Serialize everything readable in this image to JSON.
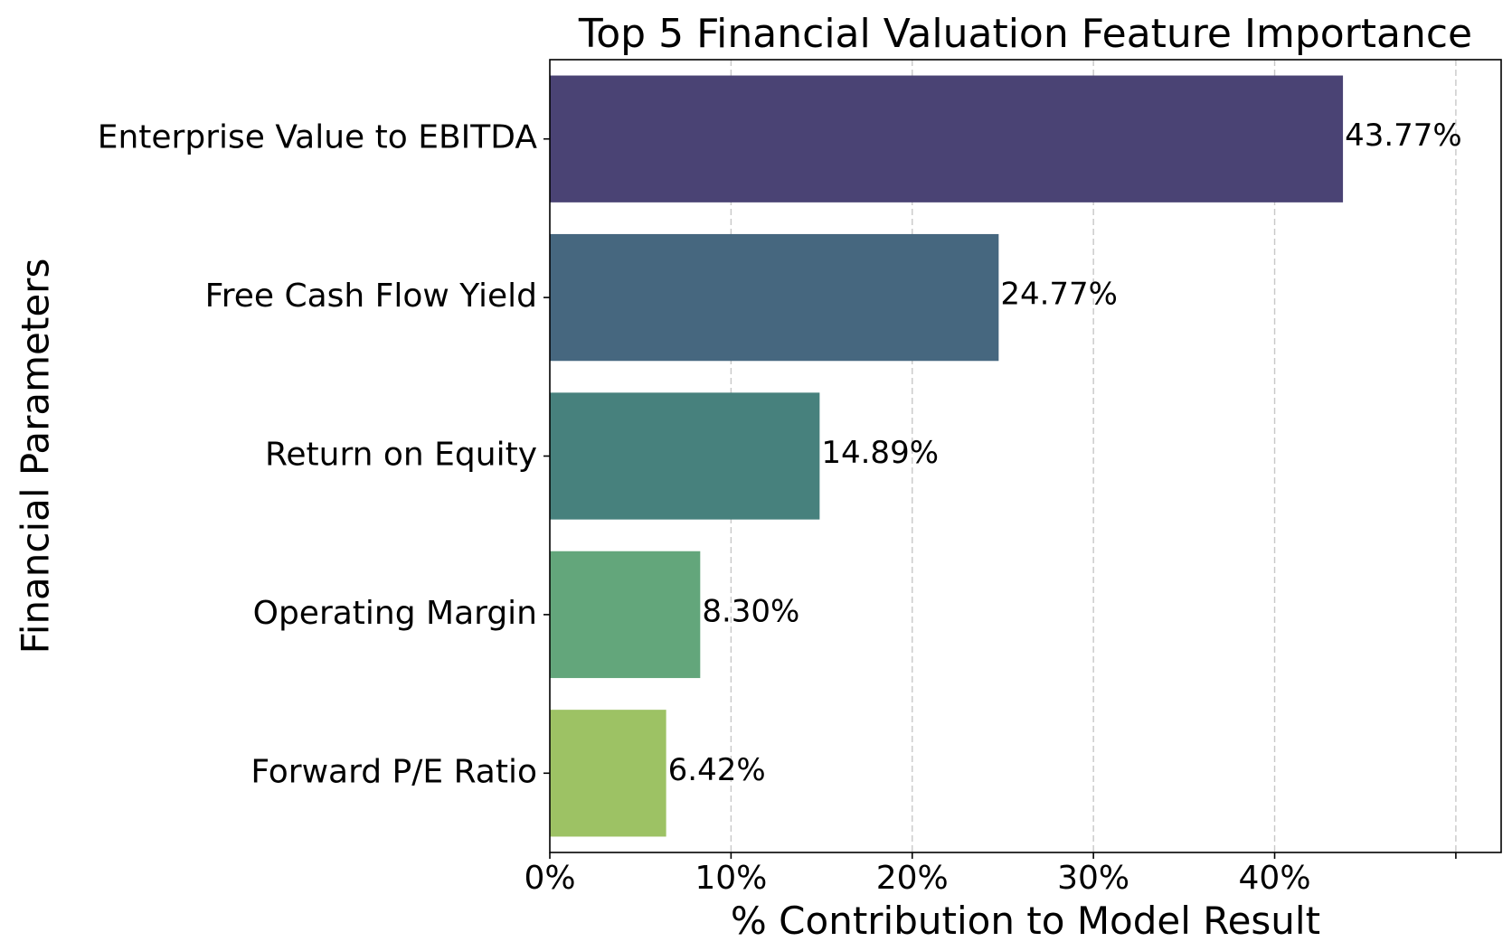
{
  "chart_data": {
    "type": "bar",
    "orientation": "horizontal",
    "title": "Top 5 Financial Valuation Feature Importance",
    "xlabel": "% Contribution to Model Result",
    "ylabel": "Financial Parameters",
    "categories": [
      "Enterprise Value to EBITDA",
      "Free Cash Flow Yield",
      "Return on Equity",
      "Operating Margin",
      "Forward P/E Ratio"
    ],
    "values": [
      43.77,
      24.77,
      14.89,
      8.3,
      6.42
    ],
    "value_labels": [
      "43.77%",
      "24.77%",
      "14.89%",
      "8.30%",
      "6.42%"
    ],
    "colors": [
      "#4a4374",
      "#46677f",
      "#47817d",
      "#63a67b",
      "#9dc264"
    ],
    "xlim": [
      0,
      52.5
    ],
    "xticks": [
      0,
      10,
      20,
      30,
      40,
      50
    ],
    "xtick_labels": [
      "0%",
      "10%",
      "20%",
      "30%",
      "40%",
      ""
    ],
    "grid": "x-dashed",
    "legend": "none"
  }
}
